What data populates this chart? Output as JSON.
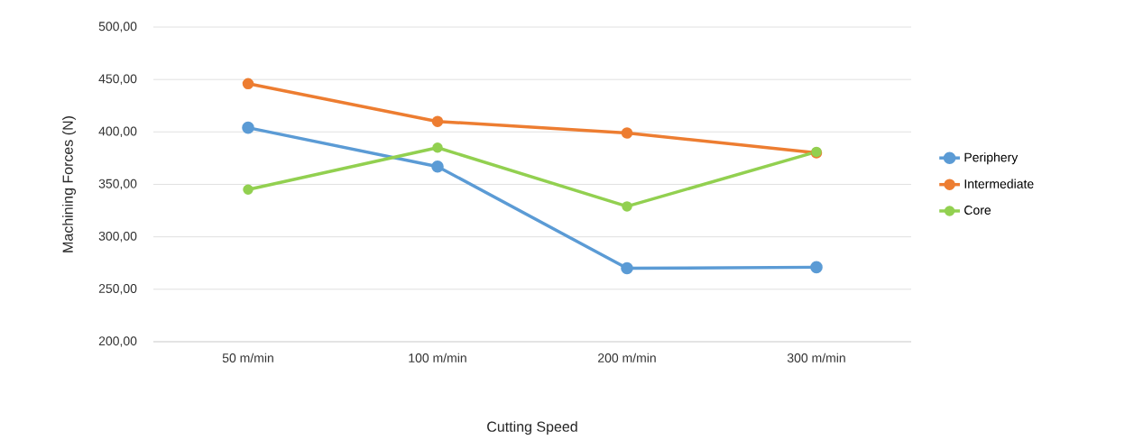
{
  "chart_data": {
    "type": "line",
    "xlabel": "Cutting Speed",
    "ylabel": "Machining Forces (N)",
    "categories": [
      "50 m/min",
      "100 m/min",
      "200 m/min",
      "300 m/min"
    ],
    "series": [
      {
        "name": "Periphery",
        "color": "#5b9bd5",
        "values": [
          404,
          367,
          270,
          271
        ]
      },
      {
        "name": "Intermediate",
        "color": "#ed7d31",
        "values": [
          446,
          410,
          399,
          380
        ]
      },
      {
        "name": "Core",
        "color": "#92d050",
        "values": [
          345,
          385,
          329,
          381
        ]
      }
    ],
    "ylim": [
      200,
      500
    ],
    "yticks": [
      {
        "value": 200,
        "label": "200,00"
      },
      {
        "value": 250,
        "label": "250,00"
      },
      {
        "value": 300,
        "label": "300,00"
      },
      {
        "value": 350,
        "label": "350,00"
      },
      {
        "value": 400,
        "label": "400,00"
      },
      {
        "value": 450,
        "label": "450,00"
      },
      {
        "value": 500,
        "label": "500,00"
      }
    ],
    "grid": "y",
    "legend": "right",
    "marker": "circle",
    "line_style": "solid"
  }
}
